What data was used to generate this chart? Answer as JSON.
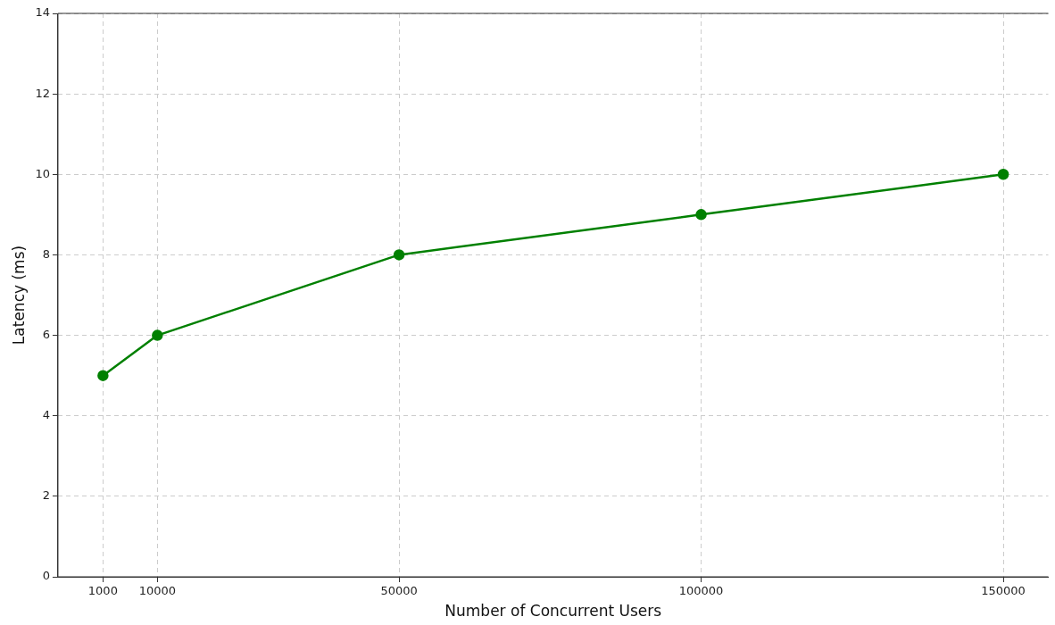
{
  "chart_data": {
    "type": "line",
    "xlabel": "Number of Concurrent Users",
    "ylabel": "Latency (ms)",
    "x": [
      1000,
      10000,
      50000,
      100000,
      150000
    ],
    "series": [
      {
        "color": "#008000",
        "values": [
          5,
          6,
          8,
          9,
          10
        ]
      }
    ],
    "xlim": [
      -6450,
      157450
    ],
    "xticks": [
      1000,
      10000,
      50000,
      100000,
      150000
    ],
    "ylim": [
      0,
      14
    ],
    "yticks": [
      0,
      2,
      4,
      6,
      8,
      10,
      12,
      14
    ],
    "grid": true,
    "marker": "circle",
    "line_style": "solid",
    "legend": false
  }
}
